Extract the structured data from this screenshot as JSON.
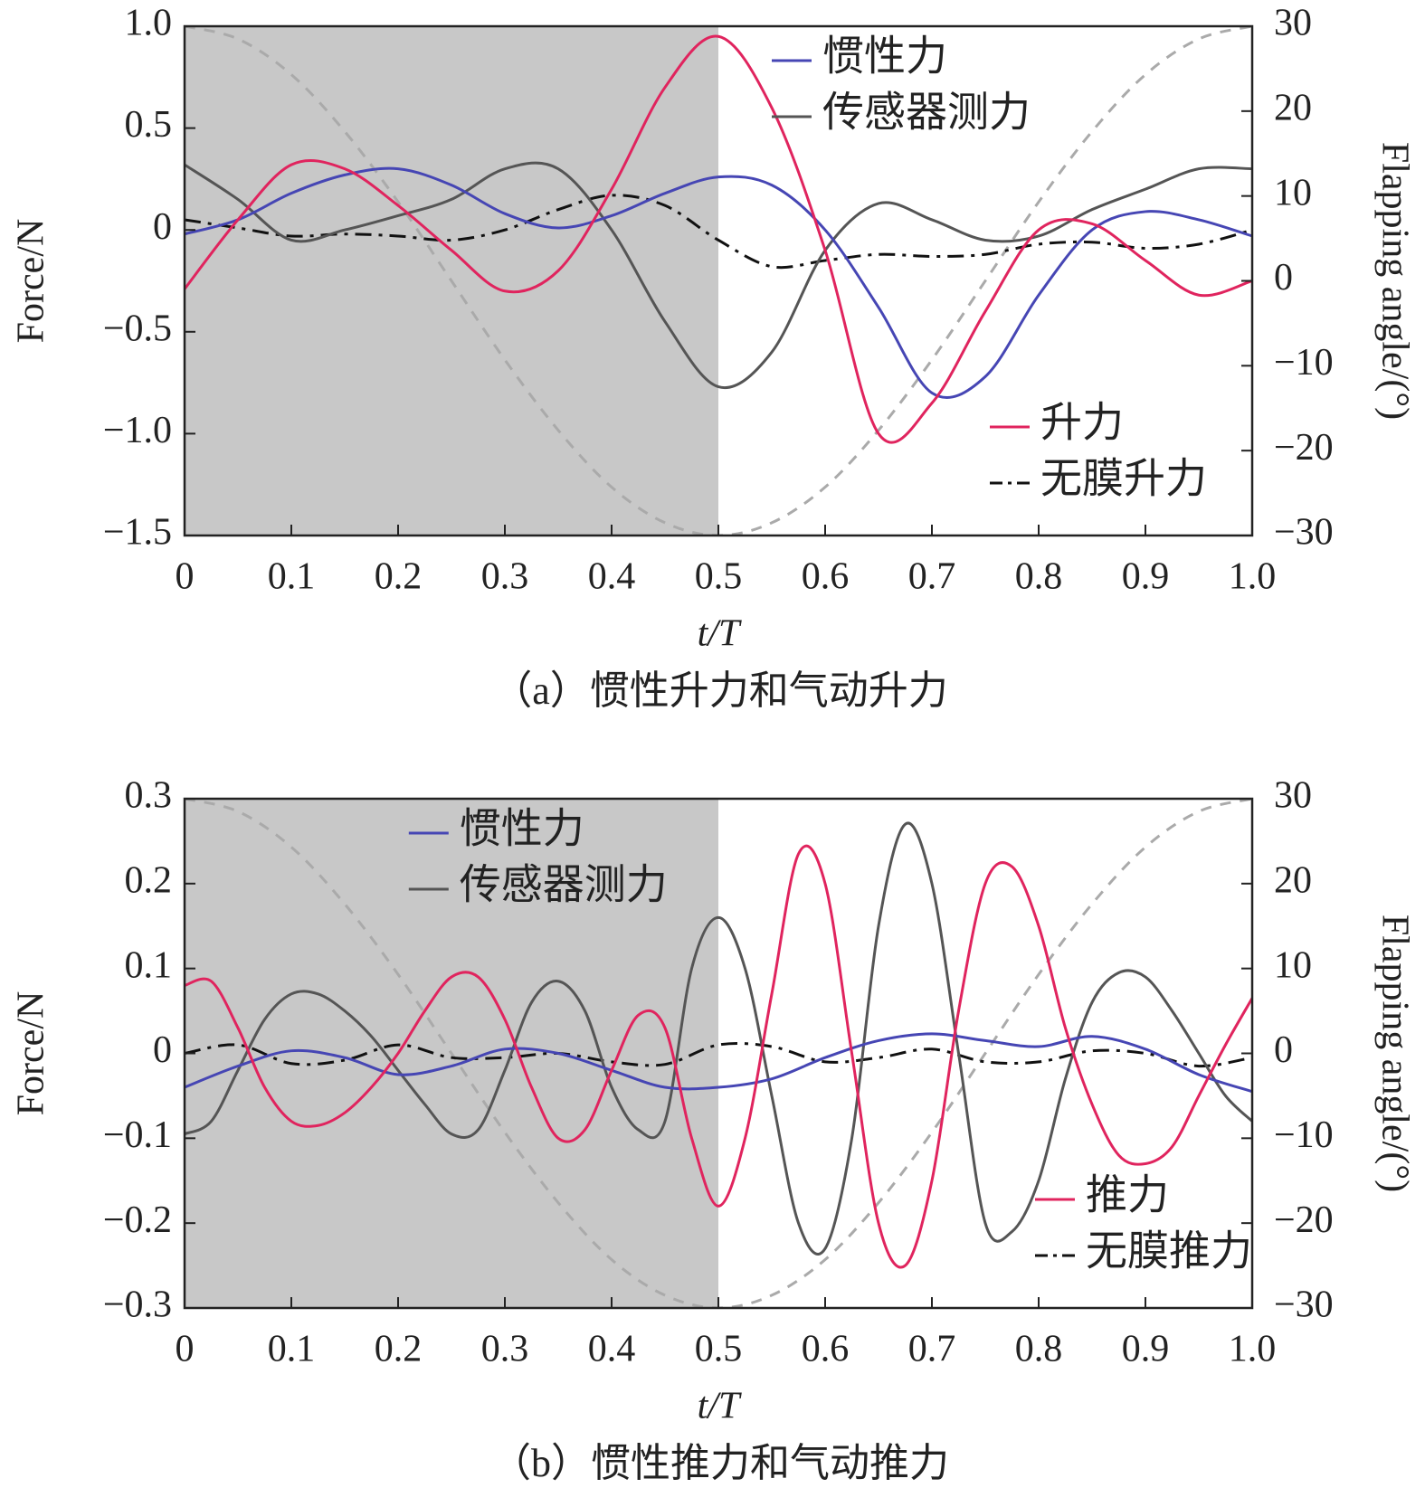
{
  "chart_data": [
    {
      "type": "line",
      "caption": "（a）惯性升力和气动升力",
      "xlabel": "t/T",
      "ylabel": "Force/N",
      "y2label": "Flapping angle/(°)",
      "xlim": [
        0,
        1
      ],
      "xticks": [
        0,
        0.1,
        0.2,
        0.3,
        0.4,
        0.5,
        0.6,
        0.7,
        0.8,
        0.9,
        {
          "value": 1,
          "label": "1.0"
        }
      ],
      "ylim": [
        -1.5,
        1
      ],
      "yticks": [
        {
          "value": -1.5,
          "label": "−1.5"
        },
        {
          "value": -1,
          "label": "−1.0"
        },
        {
          "value": -0.5,
          "label": "−0.5"
        },
        0,
        0.5,
        {
          "value": 1,
          "label": "1.0"
        }
      ],
      "y2lim": [
        -30,
        30
      ],
      "y2ticks": [
        {
          "value": -30,
          "label": "−30"
        },
        {
          "value": -20,
          "label": "−20"
        },
        {
          "value": -10,
          "label": "−10"
        },
        0,
        10,
        20,
        30
      ],
      "shaded_x": [
        0,
        0.5
      ],
      "shade_color": "#c8c8c8",
      "series": [
        {
          "name": "惯性力",
          "color": "#4646b4",
          "legend": "upper center",
          "x": [
            0,
            0.05,
            0.1,
            0.15,
            0.2,
            0.25,
            0.3,
            0.35,
            0.4,
            0.45,
            0.5,
            0.55,
            0.6,
            0.65,
            0.7,
            0.75,
            0.8,
            0.85,
            0.9,
            0.95,
            1
          ],
          "values": [
            -0.02,
            0.05,
            0.18,
            0.27,
            0.3,
            0.22,
            0.08,
            0.01,
            0.07,
            0.18,
            0.26,
            0.22,
            0.0,
            -0.38,
            -0.8,
            -0.72,
            -0.32,
            0.0,
            0.09,
            0.05,
            -0.03
          ]
        },
        {
          "name": "传感器测力",
          "color": "#555555",
          "legend": "upper center",
          "x": [
            0,
            0.05,
            0.1,
            0.15,
            0.2,
            0.25,
            0.3,
            0.35,
            0.4,
            0.45,
            0.5,
            0.55,
            0.6,
            0.65,
            0.7,
            0.75,
            0.8,
            0.85,
            0.9,
            0.95,
            1
          ],
          "values": [
            0.32,
            0.15,
            -0.05,
            0.0,
            0.07,
            0.15,
            0.3,
            0.3,
            0.0,
            -0.45,
            -0.77,
            -0.6,
            -0.1,
            0.13,
            0.05,
            -0.05,
            -0.03,
            0.1,
            0.2,
            0.3,
            0.3
          ]
        },
        {
          "name": "升力",
          "color": "#e0245e",
          "legend": "lower right",
          "x": [
            0,
            0.05,
            0.1,
            0.15,
            0.2,
            0.25,
            0.3,
            0.35,
            0.4,
            0.45,
            0.5,
            0.55,
            0.6,
            0.65,
            0.7,
            0.75,
            0.8,
            0.85,
            0.9,
            0.95,
            1
          ],
          "values": [
            -0.29,
            0.05,
            0.32,
            0.3,
            0.12,
            -0.1,
            -0.3,
            -0.2,
            0.2,
            0.7,
            0.95,
            0.6,
            -0.1,
            -1.0,
            -0.85,
            -0.4,
            0.0,
            0.03,
            -0.15,
            -0.32,
            -0.25
          ]
        },
        {
          "name": "无膜升力",
          "color": "#111111",
          "dash": "dashdot",
          "legend": "lower right",
          "x": [
            0,
            0.05,
            0.1,
            0.15,
            0.2,
            0.25,
            0.3,
            0.35,
            0.4,
            0.45,
            0.5,
            0.55,
            0.6,
            0.65,
            0.7,
            0.75,
            0.8,
            0.85,
            0.9,
            0.95,
            1
          ],
          "values": [
            0.05,
            0.01,
            -0.03,
            -0.02,
            -0.03,
            -0.05,
            0.0,
            0.1,
            0.17,
            0.12,
            -0.05,
            -0.18,
            -0.15,
            -0.12,
            -0.13,
            -0.12,
            -0.07,
            -0.06,
            -0.09,
            -0.07,
            0.0
          ]
        },
        {
          "color": "#aaaaaa",
          "dash": "dashed",
          "axis": "y2",
          "x": [
            0,
            0.05,
            0.1,
            0.15,
            0.2,
            0.25,
            0.3,
            0.35,
            0.4,
            0.45,
            0.5,
            0.55,
            0.6,
            0.65,
            0.7,
            0.75,
            0.8,
            0.85,
            0.9,
            0.95,
            1
          ],
          "values": [
            30,
            28.5,
            24.3,
            17.6,
            9.3,
            0,
            -9.3,
            -17.6,
            -24.3,
            -28.5,
            -30,
            -28.5,
            -24.3,
            -17.6,
            -9.3,
            0,
            9.3,
            17.6,
            24.3,
            28.5,
            30
          ]
        }
      ]
    },
    {
      "type": "line",
      "caption": "（b）惯性推力和气动推力",
      "xlabel": "t/T",
      "ylabel": "Force/N",
      "y2label": "Flapping angle/(°)",
      "xlim": [
        0,
        1
      ],
      "xticks": [
        0,
        0.1,
        0.2,
        0.3,
        0.4,
        0.5,
        0.6,
        0.7,
        0.8,
        0.9,
        {
          "value": 1,
          "label": "1.0"
        }
      ],
      "ylim": [
        -0.3,
        0.3
      ],
      "yticks": [
        {
          "value": -0.3,
          "label": "−0.3"
        },
        {
          "value": -0.2,
          "label": "−0.2"
        },
        {
          "value": -0.1,
          "label": "−0.1"
        },
        0,
        0.1,
        0.2,
        0.3
      ],
      "y2lim": [
        -30,
        30
      ],
      "y2ticks": [
        {
          "value": -30,
          "label": "−30"
        },
        {
          "value": -20,
          "label": "−20"
        },
        {
          "value": -10,
          "label": "−10"
        },
        0,
        10,
        20,
        30
      ],
      "shaded_x": [
        0,
        0.5
      ],
      "shade_color": "#c8c8c8",
      "series": [
        {
          "name": "惯性力",
          "color": "#4646b4",
          "legend": "upper left",
          "x": [
            0,
            0.05,
            0.1,
            0.15,
            0.2,
            0.25,
            0.3,
            0.35,
            0.4,
            0.45,
            0.5,
            0.55,
            0.6,
            0.65,
            0.7,
            0.75,
            0.8,
            0.85,
            0.9,
            0.95,
            1
          ],
          "values": [
            -0.04,
            -0.015,
            0.003,
            -0.005,
            -0.025,
            -0.015,
            0.005,
            0.0,
            -0.02,
            -0.04,
            -0.04,
            -0.03,
            -0.005,
            0.015,
            0.023,
            0.015,
            0.008,
            0.02,
            0.005,
            -0.025,
            -0.045
          ]
        },
        {
          "name": "传感器测力",
          "color": "#555555",
          "legend": "upper left",
          "x": [
            0,
            0.025,
            0.05,
            0.075,
            0.1,
            0.125,
            0.15,
            0.175,
            0.2,
            0.225,
            0.25,
            0.275,
            0.3,
            0.325,
            0.35,
            0.375,
            0.4,
            0.425,
            0.45,
            0.475,
            0.5,
            0.525,
            0.55,
            0.575,
            0.6,
            0.625,
            0.65,
            0.675,
            0.7,
            0.725,
            0.75,
            0.775,
            0.8,
            0.825,
            0.85,
            0.875,
            0.9,
            0.925,
            0.95,
            0.975,
            1
          ],
          "values": [
            -0.095,
            -0.08,
            -0.02,
            0.04,
            0.07,
            0.07,
            0.05,
            0.02,
            -0.02,
            -0.06,
            -0.095,
            -0.09,
            -0.02,
            0.06,
            0.085,
            0.05,
            -0.04,
            -0.09,
            -0.08,
            0.1,
            0.16,
            0.1,
            -0.05,
            -0.2,
            -0.23,
            -0.1,
            0.15,
            0.27,
            0.2,
            0.0,
            -0.2,
            -0.21,
            -0.15,
            -0.03,
            0.06,
            0.095,
            0.09,
            0.05,
            0.0,
            -0.05,
            -0.08
          ]
        },
        {
          "name": "推力",
          "color": "#e0245e",
          "legend": "lower right",
          "x": [
            0,
            0.025,
            0.05,
            0.075,
            0.1,
            0.125,
            0.15,
            0.175,
            0.2,
            0.225,
            0.25,
            0.275,
            0.3,
            0.325,
            0.35,
            0.375,
            0.4,
            0.425,
            0.45,
            0.475,
            0.5,
            0.525,
            0.55,
            0.575,
            0.6,
            0.625,
            0.65,
            0.675,
            0.7,
            0.725,
            0.75,
            0.775,
            0.8,
            0.825,
            0.85,
            0.875,
            0.9,
            0.925,
            0.95,
            0.975,
            1
          ],
          "values": [
            0.08,
            0.085,
            0.03,
            -0.04,
            -0.08,
            -0.085,
            -0.07,
            -0.04,
            0.0,
            0.05,
            0.09,
            0.09,
            0.04,
            -0.04,
            -0.1,
            -0.09,
            -0.02,
            0.045,
            0.03,
            -0.1,
            -0.18,
            -0.1,
            0.07,
            0.235,
            0.2,
            0.0,
            -0.2,
            -0.25,
            -0.15,
            0.05,
            0.2,
            0.22,
            0.15,
            0.03,
            -0.06,
            -0.12,
            -0.13,
            -0.11,
            -0.05,
            0.01,
            0.065
          ]
        },
        {
          "name": "无膜推力",
          "color": "#111111",
          "dash": "dashdot",
          "legend": "lower right",
          "x": [
            0,
            0.05,
            0.1,
            0.15,
            0.2,
            0.25,
            0.3,
            0.35,
            0.4,
            0.45,
            0.5,
            0.55,
            0.6,
            0.65,
            0.7,
            0.75,
            0.8,
            0.85,
            0.9,
            0.95,
            1
          ],
          "values": [
            0.0,
            0.01,
            -0.012,
            -0.008,
            0.01,
            -0.005,
            -0.005,
            0.0,
            -0.01,
            -0.013,
            0.01,
            0.008,
            -0.01,
            -0.005,
            0.005,
            -0.01,
            -0.01,
            0.003,
            0.0,
            -0.015,
            -0.005
          ]
        },
        {
          "color": "#aaaaaa",
          "dash": "dashed",
          "axis": "y2",
          "x": [
            0,
            0.05,
            0.1,
            0.15,
            0.2,
            0.25,
            0.3,
            0.35,
            0.4,
            0.45,
            0.5,
            0.55,
            0.6,
            0.65,
            0.7,
            0.75,
            0.8,
            0.85,
            0.9,
            0.95,
            1
          ],
          "values": [
            30,
            28.5,
            24.3,
            17.6,
            9.3,
            0,
            -9.3,
            -17.6,
            -24.3,
            -28.5,
            -30,
            -28.5,
            -24.3,
            -17.6,
            -9.3,
            0,
            9.3,
            17.6,
            24.3,
            28.5,
            30
          ]
        }
      ]
    }
  ]
}
